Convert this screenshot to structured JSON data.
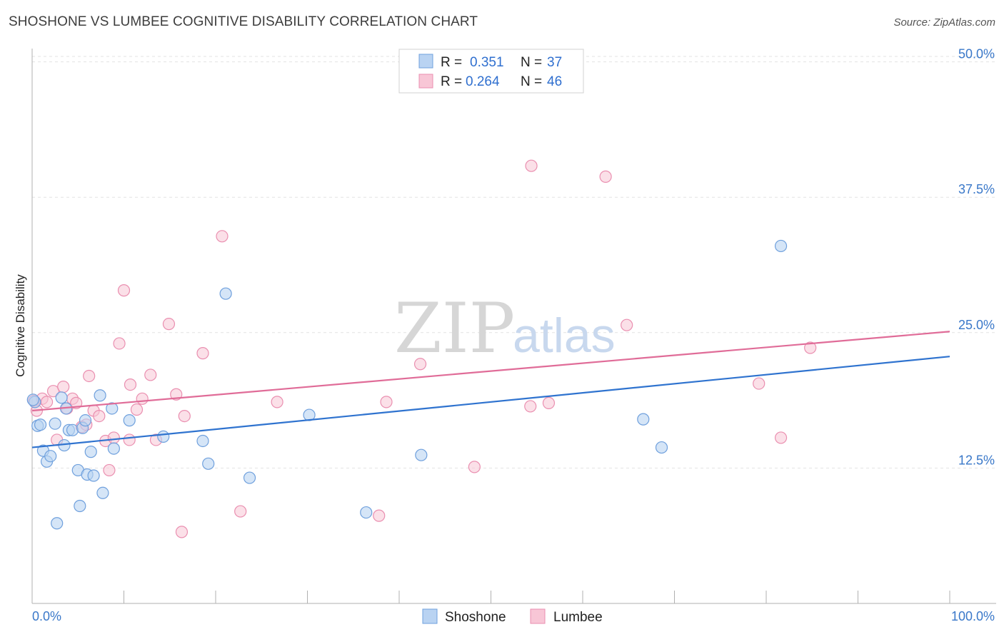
{
  "header": {
    "title": "SHOSHONE VS LUMBEE COGNITIVE DISABILITY CORRELATION CHART",
    "source": "Source: ZipAtlas.com"
  },
  "watermark": {
    "zip": "ZIP",
    "atlas": "atlas"
  },
  "colors": {
    "shoshone_fill": "#b9d3f2",
    "shoshone_stroke": "#6fa0dd",
    "shoshone_line": "#2f73cf",
    "lumbee_fill": "#f8c6d6",
    "lumbee_stroke": "#ea8fb0",
    "lumbee_line": "#e06c98",
    "grid": "#e3e3e3",
    "axis_label": "#3a78c9"
  },
  "legend": {
    "shoshone": {
      "r_label": "R =",
      "r_value": "0.351",
      "n_label": "N =",
      "n_value": "37"
    },
    "lumbee": {
      "r_label": "R =",
      "r_value": "0.264",
      "n_label": "N =",
      "n_value": "46"
    }
  },
  "chart_data": {
    "type": "scatter",
    "title": "SHOSHONE VS LUMBEE COGNITIVE DISABILITY CORRELATION CHART",
    "xlabel": "",
    "ylabel": "Cognitive Disability",
    "xlim": [
      0,
      100
    ],
    "ylim": [
      0,
      50.5
    ],
    "x_tick_labels": [
      "0.0%",
      "100.0%"
    ],
    "y_ticks": [
      12.5,
      25.0,
      37.5,
      50.0
    ],
    "y_tick_labels": [
      "12.5%",
      "25.0%",
      "37.5%",
      "50.0%"
    ],
    "grid": true,
    "legend_position": "top-center",
    "bottom_legend": [
      "Shoshone",
      "Lumbee"
    ],
    "series": [
      {
        "name": "Shoshone",
        "r": 0.351,
        "n": 37,
        "trend": {
          "x": [
            0,
            100
          ],
          "y": [
            14.4,
            22.8
          ]
        },
        "points": [
          [
            0.3,
            18.6
          ],
          [
            0.6,
            16.4
          ],
          [
            0.9,
            16.5
          ],
          [
            1.2,
            14.1
          ],
          [
            1.6,
            13.1
          ],
          [
            2.0,
            13.6
          ],
          [
            2.5,
            16.6
          ],
          [
            2.7,
            7.4
          ],
          [
            3.2,
            19.0
          ],
          [
            3.5,
            14.6
          ],
          [
            3.7,
            18.0
          ],
          [
            4.0,
            16.0
          ],
          [
            4.4,
            16.0
          ],
          [
            5.0,
            12.3
          ],
          [
            5.2,
            9.0
          ],
          [
            5.5,
            16.2
          ],
          [
            5.8,
            16.9
          ],
          [
            6.0,
            11.9
          ],
          [
            6.4,
            14.0
          ],
          [
            6.7,
            11.8
          ],
          [
            7.4,
            19.2
          ],
          [
            7.7,
            10.2
          ],
          [
            8.7,
            18.0
          ],
          [
            8.9,
            14.3
          ],
          [
            10.6,
            16.9
          ],
          [
            14.3,
            15.4
          ],
          [
            18.6,
            15.0
          ],
          [
            19.2,
            12.9
          ],
          [
            21.1,
            28.6
          ],
          [
            23.7,
            11.6
          ],
          [
            30.2,
            17.4
          ],
          [
            36.4,
            8.4
          ],
          [
            42.4,
            13.7
          ],
          [
            66.6,
            17.0
          ],
          [
            68.6,
            14.4
          ],
          [
            81.6,
            33.0
          ],
          [
            0.1,
            18.8
          ]
        ]
      },
      {
        "name": "Lumbee",
        "r": 0.264,
        "n": 46,
        "trend": {
          "x": [
            0,
            100
          ],
          "y": [
            17.8,
            25.1
          ]
        },
        "points": [
          [
            0.2,
            18.7
          ],
          [
            0.5,
            17.8
          ],
          [
            1.1,
            18.9
          ],
          [
            1.6,
            18.6
          ],
          [
            2.3,
            19.6
          ],
          [
            2.7,
            15.1
          ],
          [
            3.4,
            20.0
          ],
          [
            3.8,
            18.0
          ],
          [
            4.4,
            18.9
          ],
          [
            4.8,
            18.5
          ],
          [
            5.4,
            16.3
          ],
          [
            5.9,
            16.5
          ],
          [
            6.2,
            21.0
          ],
          [
            6.7,
            17.8
          ],
          [
            7.3,
            17.3
          ],
          [
            8.0,
            15.0
          ],
          [
            8.4,
            12.3
          ],
          [
            8.9,
            15.3
          ],
          [
            9.5,
            24.0
          ],
          [
            10.0,
            28.9
          ],
          [
            10.6,
            15.1
          ],
          [
            10.7,
            20.2
          ],
          [
            11.4,
            17.9
          ],
          [
            12.0,
            18.9
          ],
          [
            12.9,
            21.1
          ],
          [
            13.5,
            15.1
          ],
          [
            14.9,
            25.8
          ],
          [
            15.7,
            19.3
          ],
          [
            16.3,
            6.6
          ],
          [
            16.6,
            17.3
          ],
          [
            18.6,
            23.1
          ],
          [
            20.7,
            33.9
          ],
          [
            22.7,
            8.5
          ],
          [
            26.7,
            18.6
          ],
          [
            42.3,
            22.1
          ],
          [
            38.6,
            18.6
          ],
          [
            37.8,
            8.1
          ],
          [
            48.2,
            12.6
          ],
          [
            54.3,
            18.2
          ],
          [
            56.3,
            18.5
          ],
          [
            54.4,
            40.4
          ],
          [
            62.5,
            39.4
          ],
          [
            64.8,
            25.7
          ],
          [
            79.2,
            20.3
          ],
          [
            81.6,
            15.3
          ],
          [
            84.8,
            23.6
          ]
        ]
      }
    ]
  }
}
